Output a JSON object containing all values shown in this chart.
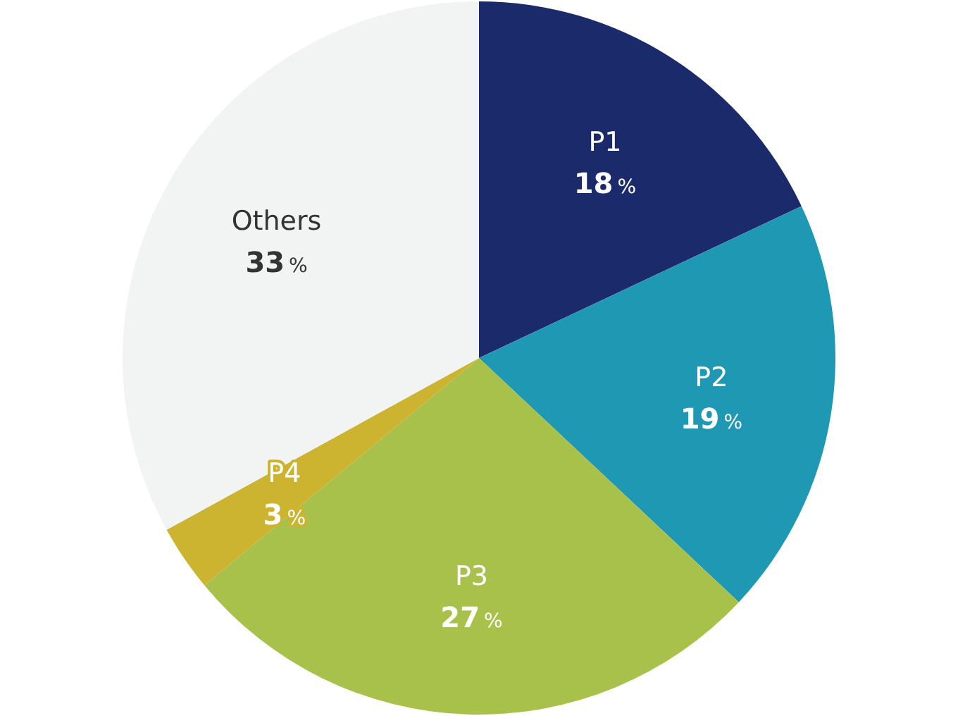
{
  "chart_data": {
    "type": "pie",
    "categories": [
      "P1",
      "P2",
      "P3",
      "P4",
      "Others"
    ],
    "values": [
      18,
      19,
      27,
      3,
      33
    ],
    "colors": [
      "#1b2a6b",
      "#1e98b3",
      "#a8c14a",
      "#cdb430",
      "#f2f4f4"
    ],
    "value_labels": [
      "18%",
      "19%",
      "27%",
      "3%",
      "33%"
    ],
    "legend": false
  }
}
